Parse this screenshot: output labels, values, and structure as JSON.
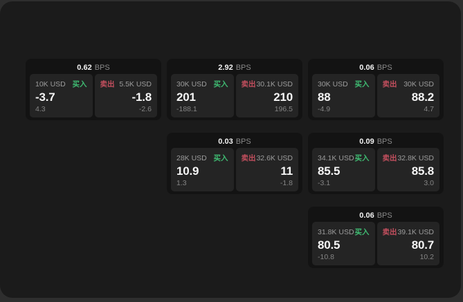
{
  "labels": {
    "buy": "买入",
    "sell": "卖出",
    "bps_suffix": "BPS"
  },
  "colors": {
    "buy": "#3fbb72",
    "sell": "#c34f5e",
    "window_background": "#1b1b1b",
    "card_background": "#131313",
    "panel_background": "#242424",
    "value_text": "#f5f5f5",
    "muted_text": "#8a8a8a"
  },
  "cards": [
    {
      "column": 0,
      "bps": "0.62",
      "buy": {
        "size": "10K USD",
        "price": "-3.7",
        "delta": "4.3"
      },
      "sell": {
        "size": "5.5K USD",
        "price": "-1.8",
        "delta": "-2.6"
      }
    },
    {
      "column": 1,
      "bps": "2.92",
      "buy": {
        "size": "30K USD",
        "price": "201",
        "delta": "-188.1"
      },
      "sell": {
        "size": "30.1K USD",
        "price": "210",
        "delta": "196.5"
      }
    },
    {
      "column": 2,
      "bps": "0.06",
      "buy": {
        "size": "30K USD",
        "price": "88",
        "delta": "-4.9"
      },
      "sell": {
        "size": "30K USD",
        "price": "88.2",
        "delta": "4.7"
      }
    },
    {
      "column": 1,
      "bps": "0.03",
      "buy": {
        "size": "28K USD",
        "price": "10.9",
        "delta": "1.3"
      },
      "sell": {
        "size": "32.6K USD",
        "price": "11",
        "delta": "-1.8"
      }
    },
    {
      "column": 2,
      "bps": "0.09",
      "buy": {
        "size": "34.1K USD",
        "price": "85.5",
        "delta": "-3.1"
      },
      "sell": {
        "size": "32.8K USD",
        "price": "85.8",
        "delta": "3.0"
      }
    },
    {
      "column": 2,
      "bps": "0.06",
      "buy": {
        "size": "31.8K USD",
        "price": "80.5",
        "delta": "-10.8"
      },
      "sell": {
        "size": "39.1K USD",
        "price": "80.7",
        "delta": "10.2"
      }
    }
  ]
}
